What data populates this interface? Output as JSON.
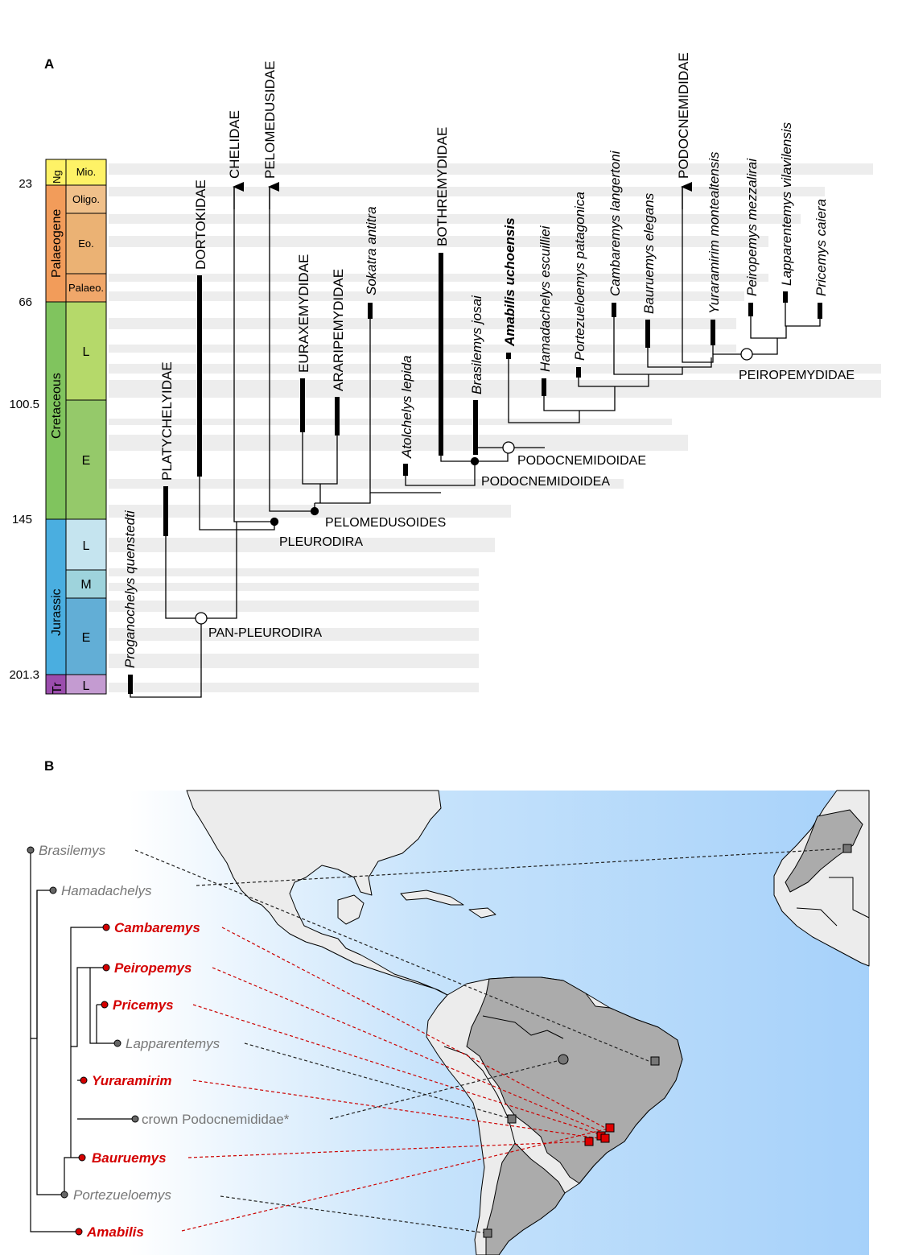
{
  "panel_a": {
    "letter": "A",
    "ages": [
      "23",
      "66",
      "100.5",
      "145",
      "201.3"
    ],
    "periods": [
      "Ng",
      "Palaeogene",
      "Cretaceous",
      "Jurassic",
      "Tr"
    ],
    "epochs": [
      "Mio.",
      "Oligo.",
      "Eo.",
      "Palaeo.",
      "L",
      "E",
      "L",
      "M",
      "E",
      "L"
    ],
    "taxa": {
      "proganochelys": "Proganochelys quenstedti",
      "platychelyidae": "PLATYCHELYIDAE",
      "dortokidae": "DORTOKIDAE",
      "chelidae": "CHELIDAE",
      "pelomedusidae": "PELOMEDUSIDAE",
      "euraxemydidae": "EURAXEMYDIDAE",
      "araripemydidae": "ARARIPEMYDIDAE",
      "sokatra": "Sokatra antitra",
      "atolchelys": "Atolchelys lepida",
      "bothremydidae": "BOTHREMYDIDAE",
      "brasilemys": "Brasilemys josai",
      "amabilis": "Amabilis uchoensis",
      "hamadachelys": "Hamadachelys escuilliei",
      "portezueloemys": "Portezueloemys patagonica",
      "cambaremys": "Cambaremys langertoni",
      "bauruemys": "Bauruemys elegans",
      "podocnemididae": "PODOCNEMIDIDAE",
      "yuraramirim": "Yuraramirim montealtensis",
      "peiropemys": "Peiropemys mezzalirai",
      "lapparentemys": "Lapparentemys vilavilensis",
      "pricemys": "Pricemys caiera"
    },
    "clades": {
      "pan_pleurodira": "PAN-PLEURODIRA",
      "pleurodira": "PLEURODIRA",
      "pelomedusoides": "PELOMEDUSOIDES",
      "podocnemidoidea": "PODOCNEMIDOIDEA",
      "podocnemidoidae": "PODOCNEMIDOIDAE",
      "peiropemydidae": "PEIROPEMYDIDAE"
    },
    "colors": {
      "neogene": "#fef266",
      "palaeogene": "#f29c5a",
      "palaeogene_epoch": "#f0b878",
      "cretaceous": "#80c45e",
      "cretaceous_late": "#b5d96a",
      "cretaceous_early": "#95c96a",
      "jurassic": "#4aaee0",
      "jurassic_late": "#b9e0ec",
      "jurassic_middle": "#9ed3dc",
      "jurassic_early": "#62aed6",
      "triassic": "#9b4dad",
      "triassic_late": "#c49bd1"
    }
  },
  "panel_b": {
    "letter": "B",
    "tree_taxa": [
      {
        "name": "Brasilemys",
        "color": "#777777"
      },
      {
        "name": "Hamadachelys",
        "color": "#777777"
      },
      {
        "name": "Cambaremys",
        "color": "#d40000"
      },
      {
        "name": "Peiropemys",
        "color": "#d40000"
      },
      {
        "name": "Pricemys",
        "color": "#d40000"
      },
      {
        "name": "Lapparentemys",
        "color": "#777777"
      },
      {
        "name": "Yuraramirim",
        "color": "#d40000"
      },
      {
        "name": "crown Podocnemididae*",
        "color": "#777777"
      },
      {
        "name": "Bauruemys",
        "color": "#d40000"
      },
      {
        "name": "Portezueloemys",
        "color": "#777777"
      },
      {
        "name": "Amabilis",
        "color": "#d40000"
      }
    ]
  }
}
